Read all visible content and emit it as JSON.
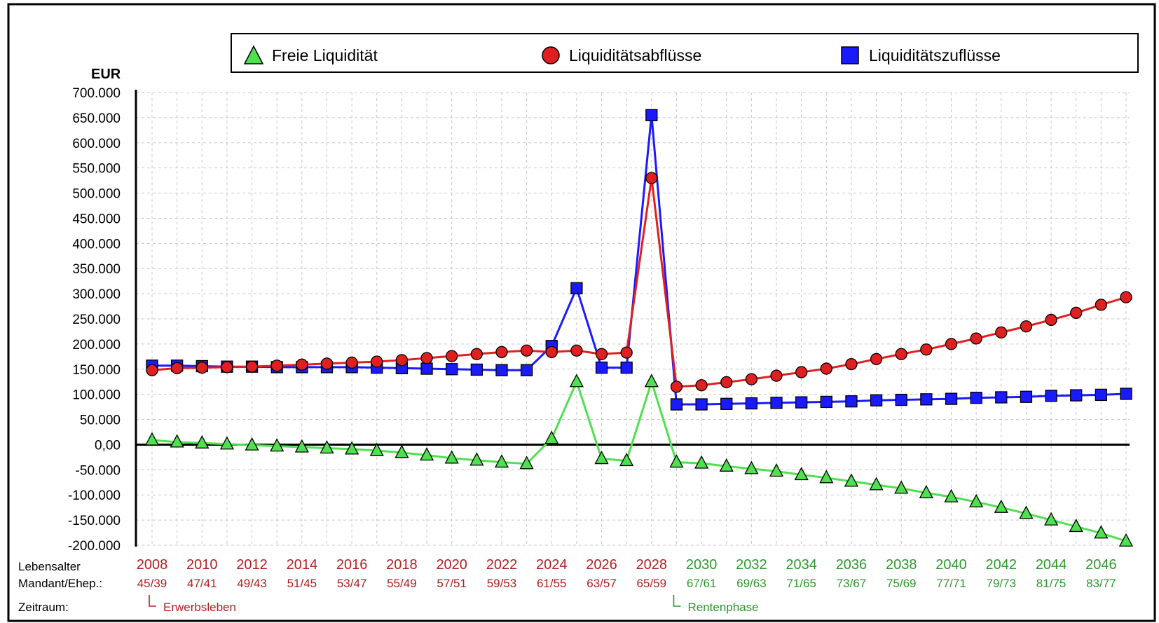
{
  "chart_data": {
    "type": "line",
    "ylabel": "EUR",
    "ylim": [
      -200000,
      700000
    ],
    "ytick_step": 50000,
    "ytick_labels": [
      "700.000",
      "650.000",
      "600.000",
      "550.000",
      "500.000",
      "450.000",
      "400.000",
      "350.000",
      "300.000",
      "250.000",
      "200.000",
      "150.000",
      "100.000",
      "50.000",
      "0,00",
      "-50.000",
      "-100.000",
      "-150.000",
      "-200.000"
    ],
    "grid": true,
    "legend_position": "top",
    "x": [
      2008,
      2009,
      2010,
      2011,
      2012,
      2013,
      2014,
      2015,
      2016,
      2017,
      2018,
      2019,
      2020,
      2021,
      2022,
      2023,
      2024,
      2025,
      2026,
      2027,
      2028,
      2029,
      2030,
      2031,
      2032,
      2033,
      2034,
      2035,
      2036,
      2037,
      2038,
      2039,
      2040,
      2041,
      2042,
      2043,
      2044,
      2045,
      2046,
      2047
    ],
    "x_tick_labels": [
      "2008",
      "2010",
      "2012",
      "2014",
      "2016",
      "2018",
      "2020",
      "2022",
      "2024",
      "2026",
      "2028",
      "2030",
      "2032",
      "2034",
      "2036",
      "2038",
      "2040",
      "2042",
      "2044",
      "2046"
    ],
    "age_labels": [
      "45/39",
      "47/41",
      "49/43",
      "51/45",
      "53/47",
      "55/49",
      "57/51",
      "59/53",
      "61/55",
      "63/57",
      "65/59",
      "67/61",
      "69/63",
      "71/65",
      "73/67",
      "75/69",
      "77/71",
      "79/73",
      "81/75",
      "83/77"
    ],
    "row_labels": {
      "age": "Lebensalter",
      "mandant": "Mandant/Ehep.:",
      "period": "Zeitraum:"
    },
    "phases": [
      {
        "label": "Erwerbsleben",
        "start": 2008,
        "color": "#b02020"
      },
      {
        "label": "Rentenphase",
        "start": 2029,
        "color": "#2a9a2a"
      }
    ],
    "series": [
      {
        "name": "Freie Liquidität",
        "color": "#4fe04f",
        "marker": "triangle",
        "values": [
          9000,
          5000,
          3000,
          1000,
          -1000,
          -3000,
          -5000,
          -7000,
          -9000,
          -12000,
          -16000,
          -21000,
          -27000,
          -31000,
          -35000,
          -38000,
          12000,
          125000,
          -28000,
          -32000,
          125000,
          -35000,
          -37000,
          -43000,
          -48000,
          -53000,
          -60000,
          -66000,
          -73000,
          -80000,
          -87000,
          -96000,
          -104000,
          -114000,
          -125000,
          -137000,
          -150000,
          -163000,
          -176000,
          -192000
        ]
      },
      {
        "name": "Liquiditätsabflüsse",
        "color": "#e02020",
        "marker": "circle",
        "values": [
          148000,
          152000,
          153000,
          154000,
          155000,
          157000,
          159000,
          161000,
          163000,
          165000,
          168000,
          172000,
          176000,
          180000,
          184000,
          187000,
          184000,
          187000,
          180000,
          183000,
          530000,
          115000,
          118000,
          124000,
          130000,
          137000,
          144000,
          151000,
          160000,
          170000,
          180000,
          189000,
          200000,
          211000,
          223000,
          235000,
          248000,
          262000,
          278000,
          293000
        ]
      },
      {
        "name": "Liquiditätszuflüsse",
        "color": "#1a1aff",
        "marker": "square",
        "values": [
          157000,
          157000,
          156000,
          155000,
          155000,
          154000,
          154000,
          154000,
          154000,
          153000,
          152000,
          151000,
          150000,
          149000,
          148000,
          148000,
          196000,
          311000,
          153000,
          153000,
          655000,
          80000,
          80000,
          81000,
          82000,
          83000,
          84000,
          85000,
          86000,
          88000,
          89000,
          90000,
          91000,
          93000,
          94000,
          95000,
          97000,
          98000,
          99000,
          101000
        ]
      }
    ]
  }
}
